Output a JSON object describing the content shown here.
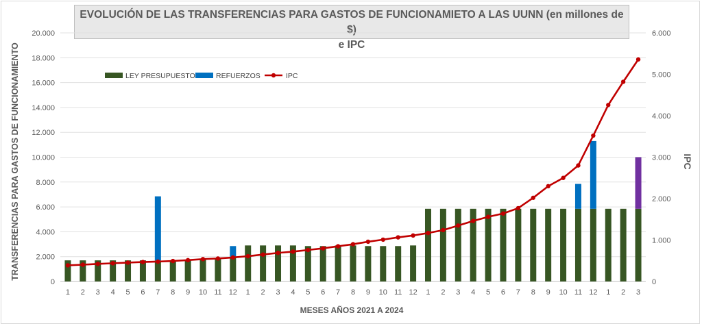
{
  "chart_data": {
    "type": "bar",
    "title_line1": "EVOLUCIÓN DE LAS TRANSFERENCIAS PARA GASTOS DE FUNCIONAMIETO A LAS UUNN (en millones de $)",
    "title_line2": "e IPC",
    "xlabel": "MESES AÑOS 2021  A 2024",
    "ylabel": "TRANSFERENCIAS PARA GASTOS DE FUNCIONAMIENTO",
    "y2label": "IPC",
    "ylim": [
      0,
      20000
    ],
    "y2lim": [
      0,
      6000
    ],
    "y_ticks": [
      "0",
      "2.000",
      "4.000",
      "6.000",
      "8.000",
      "10.000",
      "12.000",
      "14.000",
      "16.000",
      "18.000",
      "20.000"
    ],
    "y2_ticks": [
      "0",
      "1.000",
      "2.000",
      "3.000",
      "4.000",
      "5.000",
      "6.000"
    ],
    "categories": [
      "1",
      "2",
      "3",
      "4",
      "5",
      "6",
      "7",
      "8",
      "9",
      "10",
      "11",
      "12",
      "1",
      "2",
      "3",
      "4",
      "5",
      "6",
      "7",
      "8",
      "9",
      "10",
      "11",
      "12",
      "1",
      "2",
      "3",
      "4",
      "5",
      "6",
      "7",
      "8",
      "9",
      "10",
      "11",
      "12",
      "1",
      "2",
      "3"
    ],
    "legend_position": "top-left",
    "grid": true,
    "series": [
      {
        "name": "LEY PRESUPUESTO",
        "kind": "bar",
        "color": "#375623",
        "values": [
          1700,
          1700,
          1700,
          1700,
          1700,
          1700,
          1700,
          1700,
          1700,
          1800,
          1800,
          2000,
          2900,
          2900,
          2900,
          2900,
          2850,
          2850,
          2900,
          2900,
          2850,
          2850,
          2850,
          2900,
          5850,
          5850,
          5850,
          5850,
          5850,
          5850,
          5850,
          5850,
          5850,
          5850,
          5850,
          5850,
          5850,
          5850,
          5850
        ]
      },
      {
        "name": "REFUERZOS",
        "kind": "stacked-bar",
        "color": "#0070c0",
        "values": [
          0,
          0,
          0,
          0,
          0,
          0,
          5150,
          0,
          0,
          0,
          0,
          850,
          0,
          0,
          0,
          0,
          0,
          0,
          0,
          0,
          0,
          0,
          0,
          0,
          0,
          0,
          0,
          0,
          0,
          0,
          0,
          0,
          0,
          0,
          2000,
          5450,
          0,
          0,
          0
        ]
      },
      {
        "name": "",
        "kind": "stacked-bar",
        "color": "#7030a0",
        "values": [
          0,
          0,
          0,
          0,
          0,
          0,
          0,
          0,
          0,
          0,
          0,
          0,
          0,
          0,
          0,
          0,
          0,
          0,
          0,
          0,
          0,
          0,
          0,
          0,
          0,
          0,
          0,
          0,
          0,
          0,
          0,
          0,
          0,
          0,
          0,
          0,
          0,
          0,
          4150
        ]
      },
      {
        "name": "IPC",
        "kind": "line",
        "axis": "secondary",
        "color": "#c00000",
        "values": [
          390,
          405,
          425,
          440,
          455,
          470,
          480,
          495,
          515,
          540,
          555,
          580,
          610,
          650,
          690,
          720,
          760,
          800,
          850,
          900,
          960,
          1010,
          1065,
          1110,
          1170,
          1240,
          1350,
          1460,
          1560,
          1640,
          1770,
          2020,
          2300,
          2500,
          2800,
          3520,
          4260,
          4820,
          5360
        ]
      }
    ]
  }
}
